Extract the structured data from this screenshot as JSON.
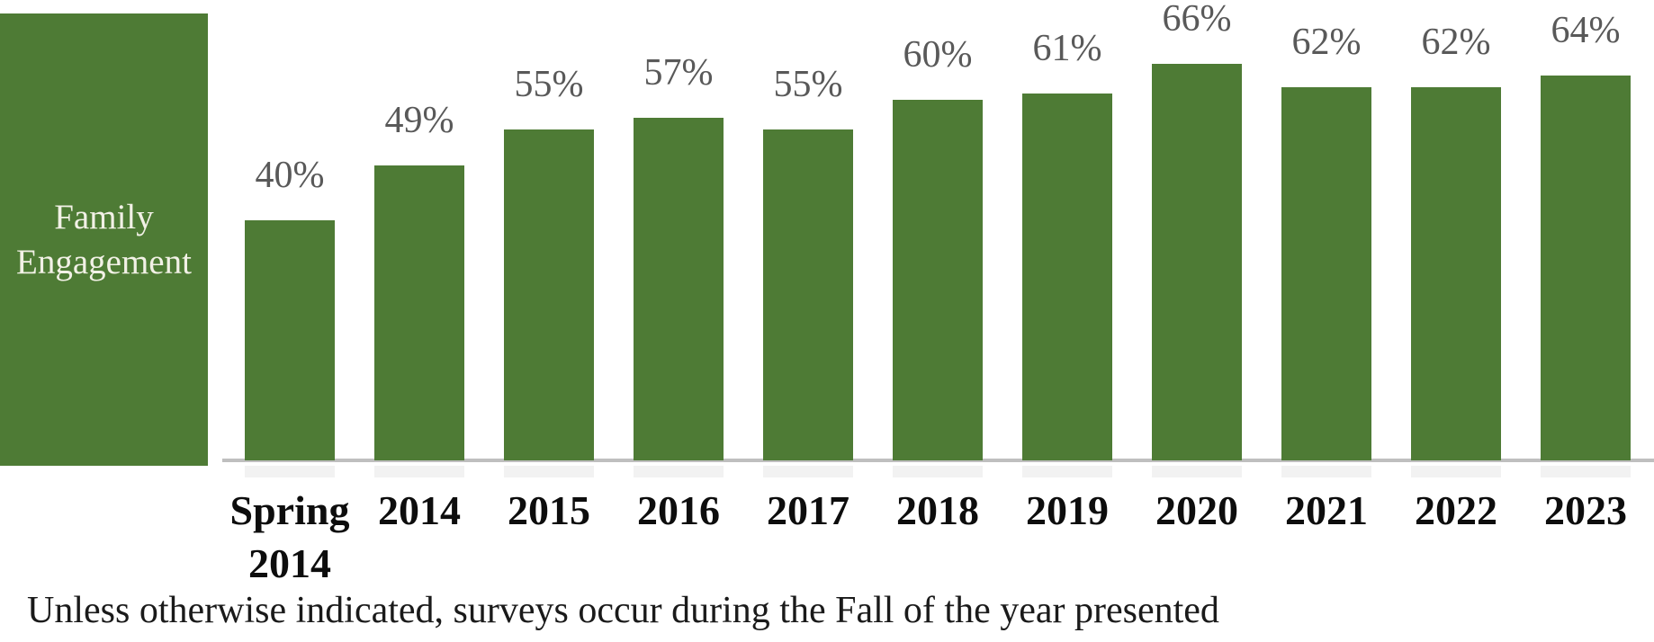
{
  "chart_data": {
    "type": "bar",
    "title": "Family Engagement",
    "categories": [
      "Spring 2014",
      "2014",
      "2015",
      "2016",
      "2017",
      "2018",
      "2019",
      "2020",
      "2021",
      "2022",
      "2023"
    ],
    "values": [
      40,
      49,
      55,
      57,
      55,
      60,
      61,
      66,
      62,
      62,
      64
    ],
    "value_labels": [
      "40%",
      "49%",
      "55%",
      "57%",
      "55%",
      "60%",
      "61%",
      "66%",
      "62%",
      "62%",
      "64%"
    ],
    "xlabel": "",
    "ylabel": "",
    "ylim": [
      0,
      74
    ],
    "grid": false,
    "legend": false,
    "bar_color": "#4e7b35",
    "value_label_color": "#595959",
    "axis_line_color": "#bfbfbf",
    "footnote": "Unless otherwise indicated, surveys occur during the Fall of the year presented"
  }
}
